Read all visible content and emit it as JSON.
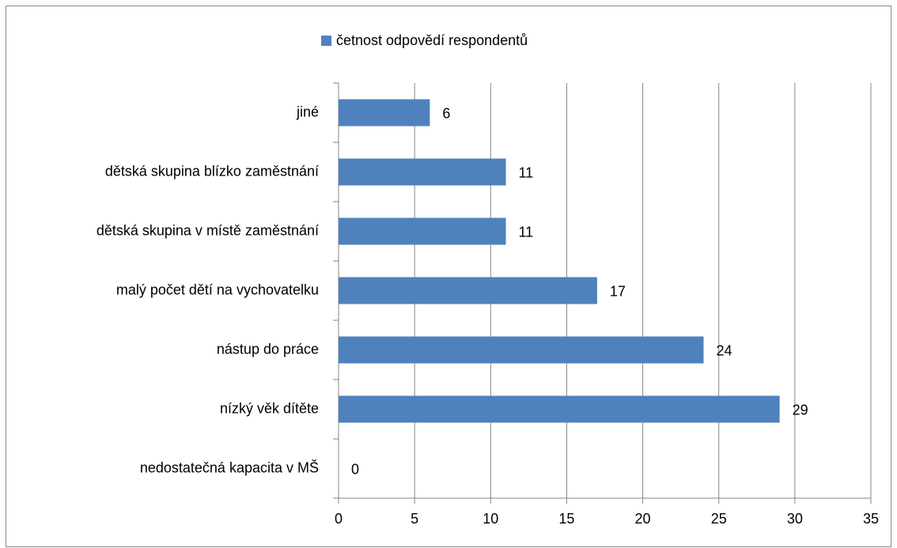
{
  "chart_data": {
    "type": "bar",
    "orientation": "horizontal",
    "categories": [
      "nedostatečná kapacita v MŠ",
      "nízký věk dítěte",
      "nástup do práce",
      "malý počet dětí na vychovatelku",
      "dětská skupina v místě zaměstnání",
      "dětská skupina blízko zaměstnání",
      "jiné"
    ],
    "series": [
      {
        "name": "četnost odpovědí respondentů",
        "color": "#4f81bd",
        "values": [
          0,
          29,
          24,
          17,
          11,
          11,
          6
        ]
      }
    ],
    "xlim": [
      0,
      35
    ],
    "xticks": [
      0,
      5,
      10,
      15,
      20,
      25,
      30,
      35
    ],
    "grid": true,
    "legend": "top"
  }
}
